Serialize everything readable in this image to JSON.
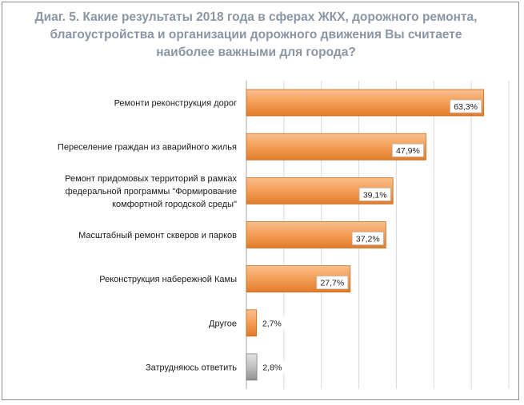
{
  "chart_data": {
    "type": "bar",
    "orientation": "horizontal",
    "title": "Диаг. 5. Какие результаты 2018 года в сферах ЖКХ, дорожного ремонта, благоустройства и организации дорожного движения Вы считаете наиболее важными для города?",
    "categories": [
      [
        "Ремонти реконструкция дорог"
      ],
      [
        "Переселение граждан из аварийного жилья"
      ],
      [
        "Ремонт придомовых территорий  в рамках",
        "федеральной программы \"Формирование",
        "комфортной городской среды\""
      ],
      [
        "Масштабный ремонт скверов и парков"
      ],
      [
        "Реконструкция набережной Камы"
      ],
      [
        "Другое"
      ],
      [
        "Затрудняюсь ответить"
      ]
    ],
    "values": [
      63.3,
      47.9,
      39.1,
      37.2,
      27.7,
      2.7,
      2.8
    ],
    "value_labels": [
      "63,3%",
      "47,9%",
      "39,1%",
      "37,2%",
      "27,7%",
      "2,7%",
      "2,8%"
    ],
    "bar_colors": [
      "#f5a05a",
      "#f5a05a",
      "#f5a05a",
      "#f5a05a",
      "#f5a05a",
      "#f5a05a",
      "#c0c0c0"
    ],
    "xlim": [
      0,
      70
    ],
    "grid": true,
    "legend": "none"
  }
}
